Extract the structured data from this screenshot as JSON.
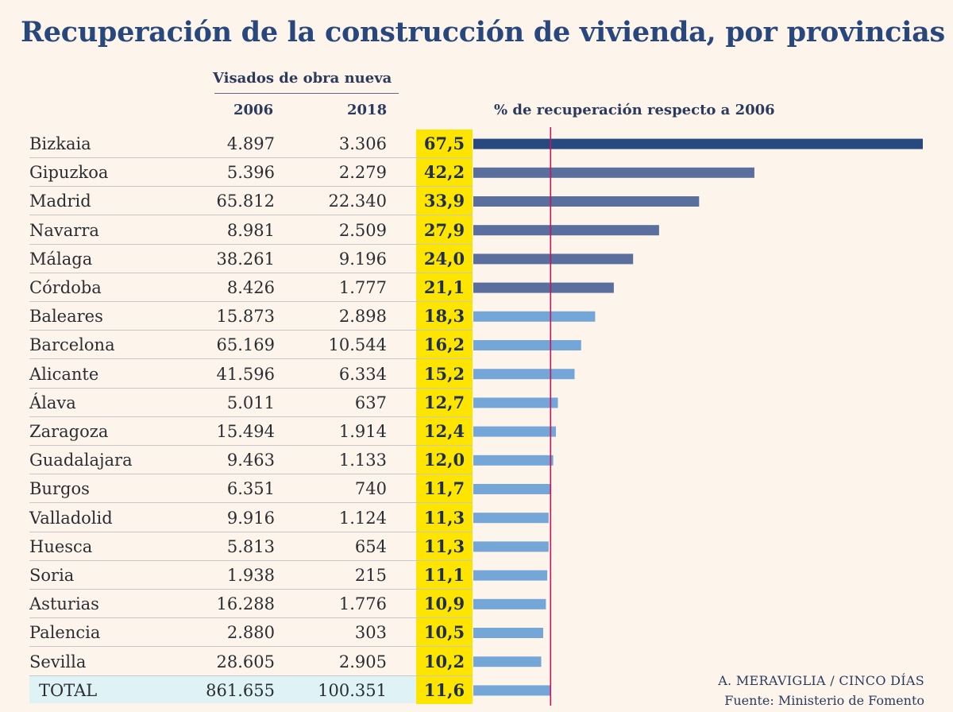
{
  "title": "Recuperación de la construcción de vivienda, por provincias",
  "headers": {
    "group": "Visados de obra nueva",
    "col_2006": "2006",
    "col_2018": "2018",
    "pct": "% de recuperación respecto a 2006"
  },
  "credit": "A. MERAVIGLIA / CINCO DÍAS",
  "source": "Fuente: Ministerio de Fomento",
  "colors": {
    "title": "#27477d",
    "bar_dark": "#27497f",
    "bar_mid": "#5b6f9e",
    "bar_light": "#74a6d8",
    "highlight": "#fee500",
    "reference_line": "#c2185b",
    "total_row": "#dff3f7"
  },
  "rows": [
    {
      "name": "Bizkaia",
      "v2006": "4.897",
      "v2018": "3.306",
      "pct": "67,5"
    },
    {
      "name": "Gipuzkoa",
      "v2006": "5.396",
      "v2018": "2.279",
      "pct": "42,2"
    },
    {
      "name": "Madrid",
      "v2006": "65.812",
      "v2018": "22.340",
      "pct": "33,9"
    },
    {
      "name": "Navarra",
      "v2006": "8.981",
      "v2018": "2.509",
      "pct": "27,9"
    },
    {
      "name": "Málaga",
      "v2006": "38.261",
      "v2018": "9.196",
      "pct": "24,0"
    },
    {
      "name": "Córdoba",
      "v2006": "8.426",
      "v2018": "1.777",
      "pct": "21,1"
    },
    {
      "name": "Baleares",
      "v2006": "15.873",
      "v2018": "2.898",
      "pct": "18,3"
    },
    {
      "name": "Barcelona",
      "v2006": "65.169",
      "v2018": "10.544",
      "pct": "16,2"
    },
    {
      "name": "Alicante",
      "v2006": "41.596",
      "v2018": "6.334",
      "pct": "15,2"
    },
    {
      "name": "Álava",
      "v2006": "5.011",
      "v2018": "637",
      "pct": "12,7"
    },
    {
      "name": "Zaragoza",
      "v2006": "15.494",
      "v2018": "1.914",
      "pct": "12,4"
    },
    {
      "name": "Guadalajara",
      "v2006": "9.463",
      "v2018": "1.133",
      "pct": "12,0"
    },
    {
      "name": "Burgos",
      "v2006": "6.351",
      "v2018": "740",
      "pct": "11,7"
    },
    {
      "name": "Valladolid",
      "v2006": "9.916",
      "v2018": "1.124",
      "pct": "11,3"
    },
    {
      "name": "Huesca",
      "v2006": "5.813",
      "v2018": "654",
      "pct": "11,3"
    },
    {
      "name": "Soria",
      "v2006": "1.938",
      "v2018": "215",
      "pct": "11,1"
    },
    {
      "name": "Asturias",
      "v2006": "16.288",
      "v2018": "1.776",
      "pct": "10,9"
    },
    {
      "name": "Palencia",
      "v2006": "2.880",
      "v2018": "303",
      "pct": "10,5"
    },
    {
      "name": "Sevilla",
      "v2006": "28.605",
      "v2018": "2.905",
      "pct": "10,2"
    }
  ],
  "total": {
    "name": "TOTAL",
    "v2006": "861.655",
    "v2018": "100.351",
    "pct": "11,6"
  },
  "chart_data": {
    "type": "bar",
    "orientation": "horizontal",
    "title": "% de recuperación respecto a 2006",
    "categories": [
      "Bizkaia",
      "Gipuzkoa",
      "Madrid",
      "Navarra",
      "Málaga",
      "Córdoba",
      "Baleares",
      "Barcelona",
      "Alicante",
      "Álava",
      "Zaragoza",
      "Guadalajara",
      "Burgos",
      "Valladolid",
      "Huesca",
      "Soria",
      "Asturias",
      "Palencia",
      "Sevilla",
      "TOTAL"
    ],
    "values": [
      67.5,
      42.2,
      33.9,
      27.9,
      24.0,
      21.1,
      18.3,
      16.2,
      15.2,
      12.7,
      12.4,
      12.0,
      11.7,
      11.3,
      11.3,
      11.1,
      10.9,
      10.5,
      10.2,
      11.6
    ],
    "reference_line": 11.6,
    "xlim": [
      0,
      67.5
    ]
  }
}
